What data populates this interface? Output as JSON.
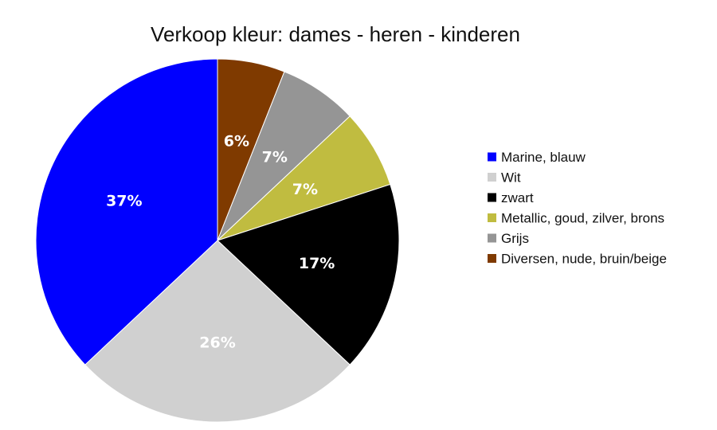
{
  "chart_data": {
    "type": "pie",
    "title": "Verkoop kleur: dames - heren - kinderen",
    "legend_position": "right",
    "slices": [
      {
        "name": "Marine, blauw",
        "value": 37,
        "label": "37%",
        "color": "#0000ff"
      },
      {
        "name": "Wit",
        "value": 26,
        "label": "26%",
        "color": "#d0d0d0"
      },
      {
        "name": "zwart",
        "value": 17,
        "label": "17%",
        "color": "#000000"
      },
      {
        "name": "Metallic, goud, zilver, brons",
        "value": 7,
        "label": "7%",
        "color": "#c0bc40"
      },
      {
        "name": "Grijs",
        "value": 7,
        "label": "7%",
        "color": "#959595"
      },
      {
        "name": "Diversen, nude, bruin/beige",
        "value": 6,
        "label": "6%",
        "color": "#7f3a00"
      }
    ]
  }
}
